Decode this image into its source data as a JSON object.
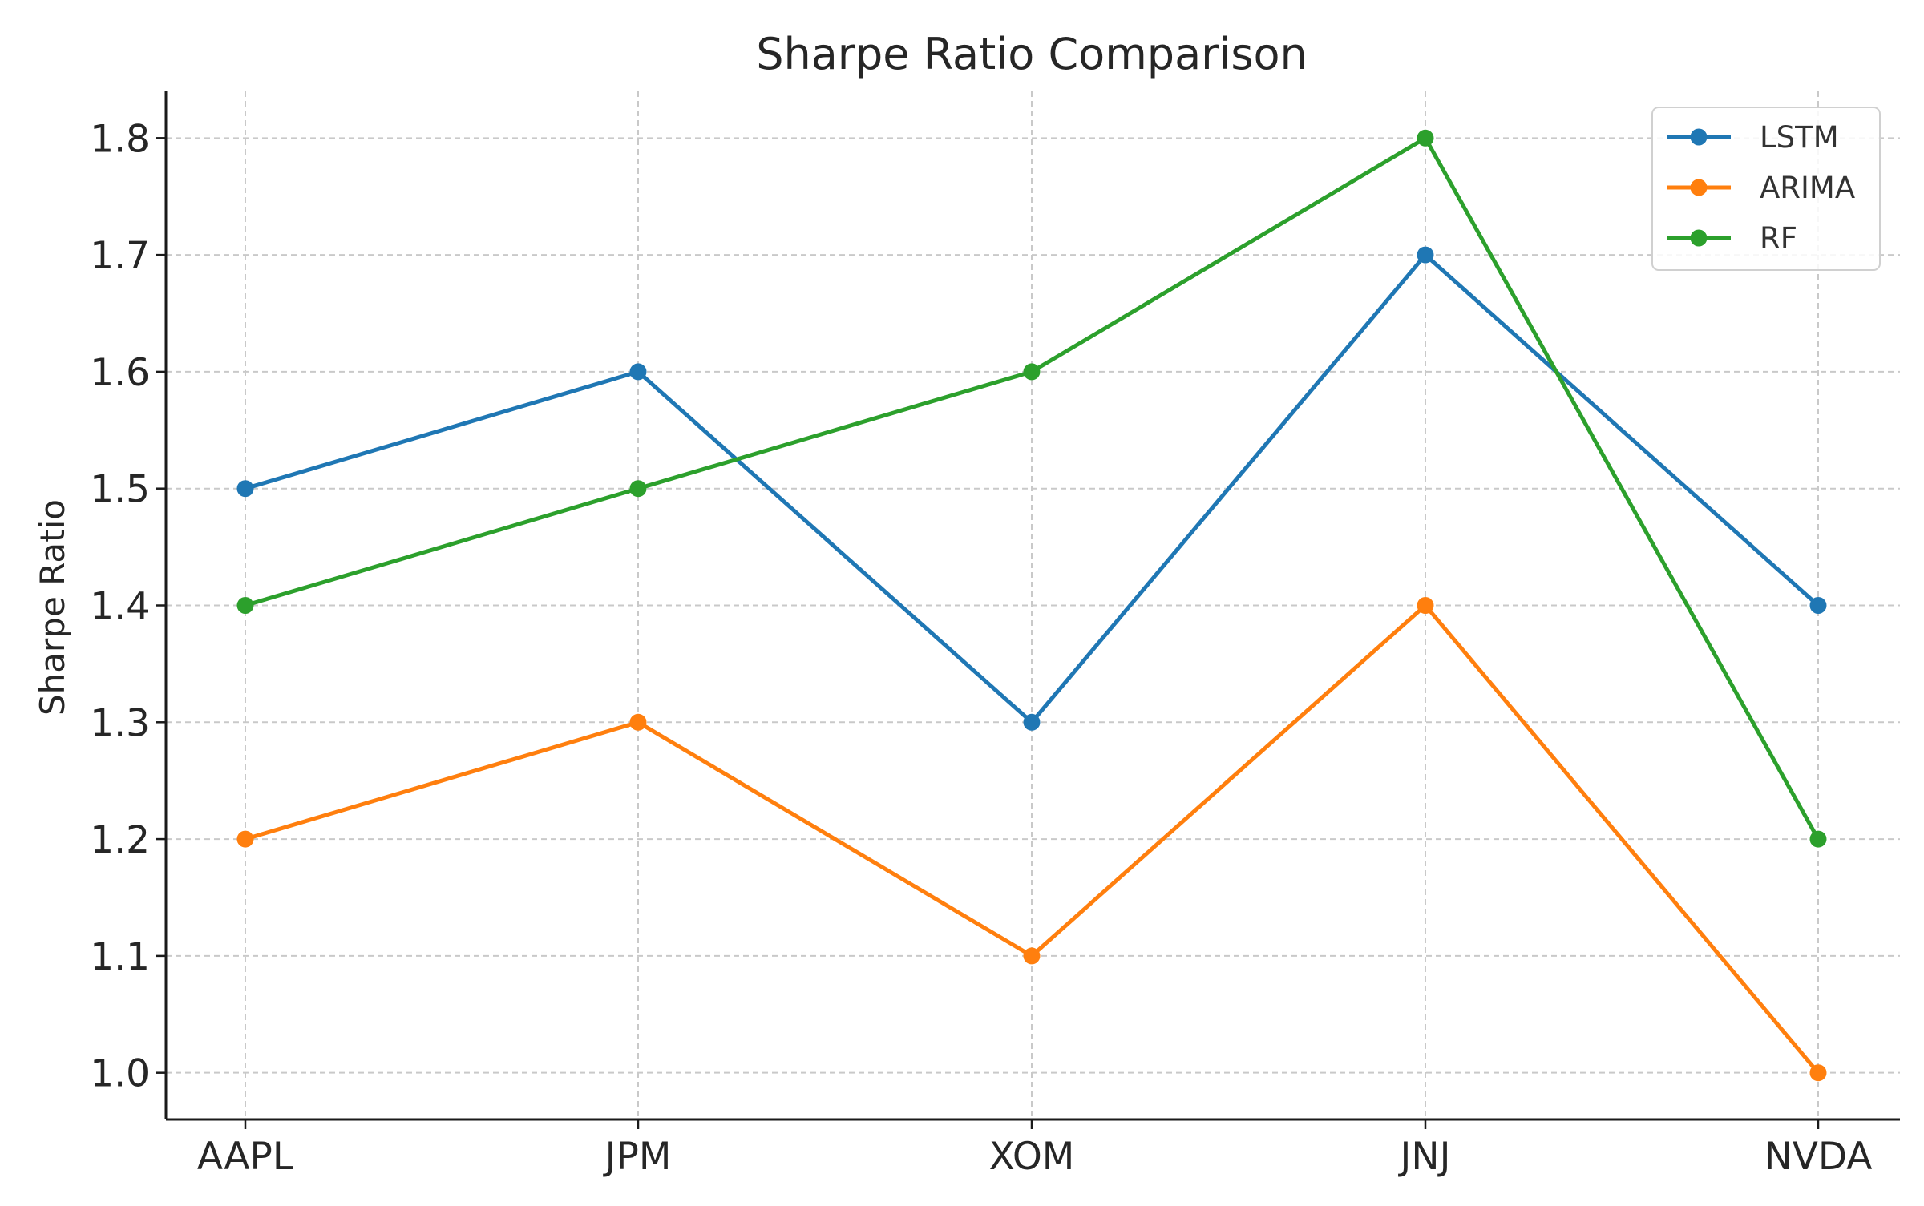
{
  "chart_data": {
    "type": "line",
    "title": "Sharpe Ratio Comparison",
    "xlabel": "",
    "ylabel": "Sharpe Ratio",
    "categories": [
      "AAPL",
      "JPM",
      "XOM",
      "JNJ",
      "NVDA"
    ],
    "series": [
      {
        "name": "LSTM",
        "color": "#1f77b4",
        "values": [
          1.5,
          1.6,
          1.3,
          1.7,
          1.4
        ]
      },
      {
        "name": "ARIMA",
        "color": "#ff7f0e",
        "values": [
          1.2,
          1.3,
          1.1,
          1.4,
          1.0
        ]
      },
      {
        "name": "RF",
        "color": "#2ca02c",
        "values": [
          1.4,
          1.5,
          1.6,
          1.8,
          1.2
        ]
      }
    ],
    "yticks": [
      "1.0",
      "1.1",
      "1.2",
      "1.3",
      "1.4",
      "1.5",
      "1.6",
      "1.7",
      "1.8"
    ],
    "ylim": [
      0.96,
      1.84
    ],
    "grid": true,
    "legend_position": "top-right",
    "markers": "circle"
  }
}
